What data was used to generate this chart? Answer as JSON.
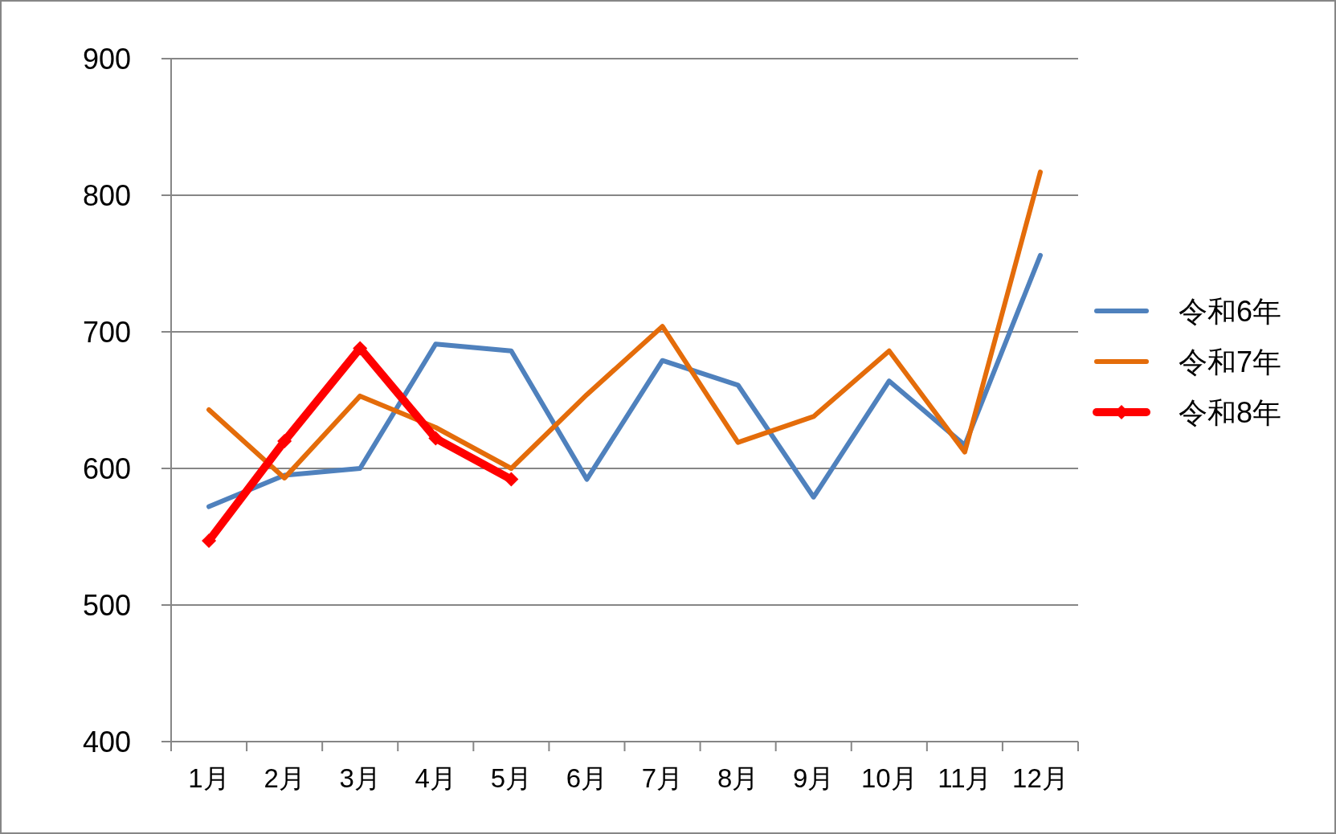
{
  "chart_data": {
    "type": "line",
    "categories": [
      "1月",
      "2月",
      "3月",
      "4月",
      "5月",
      "6月",
      "7月",
      "8月",
      "9月",
      "10月",
      "11月",
      "12月"
    ],
    "series": [
      {
        "name": "令和6年",
        "color": "#4f81bd",
        "marker": "none",
        "values": [
          572,
          595,
          600,
          691,
          686,
          592,
          679,
          661,
          579,
          664,
          617,
          756
        ]
      },
      {
        "name": "令和7年",
        "color": "#e46c0a",
        "marker": "none",
        "values": [
          643,
          593,
          653,
          630,
          600,
          654,
          704,
          619,
          638,
          686,
          612,
          817
        ]
      },
      {
        "name": "令和8年",
        "color": "#ff0000",
        "marker": "diamond",
        "values": [
          547,
          620,
          688,
          622,
          592,
          null,
          null,
          null,
          null,
          null,
          null,
          null
        ]
      }
    ],
    "ylim": [
      400,
      900
    ],
    "yticks": [
      400,
      500,
      600,
      700,
      800,
      900
    ],
    "grid": "y",
    "legend": "right",
    "line_style": "solid"
  }
}
